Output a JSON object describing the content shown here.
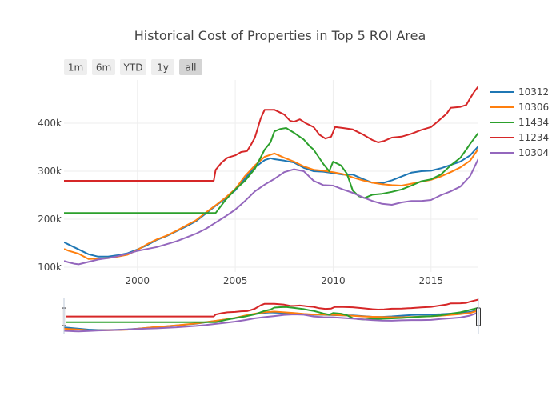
{
  "chart_data": {
    "type": "line",
    "title": "Historical Cost of Properties in Top 5 ROI Area",
    "xlabel": "",
    "ylabel": "",
    "xlim": [
      1996.25,
      2017.42
    ],
    "ylim": [
      90000,
      490000
    ],
    "x_ticks": [
      2000,
      2005,
      2010,
      2015
    ],
    "x_tick_labels": [
      "2000",
      "2005",
      "2010",
      "2015"
    ],
    "y_ticks": [
      100000,
      200000,
      300000,
      400000
    ],
    "y_tick_labels": [
      "100k",
      "200k",
      "300k",
      "400k"
    ],
    "grid": true,
    "legend_position": "right",
    "range_selector": [
      "1m",
      "6m",
      "YTD",
      "1y",
      "all"
    ],
    "range_selector_active": "all",
    "range_slider": true,
    "series": [
      {
        "name": "10312",
        "color": "#1f77b4",
        "points": [
          [
            1996.25,
            152000
          ],
          [
            1996.5,
            147000
          ],
          [
            1997,
            137000
          ],
          [
            1997.5,
            127000
          ],
          [
            1998,
            122000
          ],
          [
            1998.5,
            122000
          ],
          [
            1999,
            125000
          ],
          [
            1999.5,
            129000
          ],
          [
            2000,
            137000
          ],
          [
            2000.5,
            146000
          ],
          [
            2001,
            157000
          ],
          [
            2001.5,
            165000
          ],
          [
            2002,
            175000
          ],
          [
            2002.5,
            185000
          ],
          [
            2003,
            196000
          ],
          [
            2003.5,
            212000
          ],
          [
            2004,
            228000
          ],
          [
            2004.5,
            243000
          ],
          [
            2005,
            260000
          ],
          [
            2005.5,
            285000
          ],
          [
            2006,
            308000
          ],
          [
            2006.5,
            323000
          ],
          [
            2006.8,
            327000
          ],
          [
            2007,
            325000
          ],
          [
            2007.5,
            322000
          ],
          [
            2008,
            318000
          ],
          [
            2008.5,
            307000
          ],
          [
            2009,
            300000
          ],
          [
            2009.5,
            299000
          ],
          [
            2010,
            296000
          ],
          [
            2010.5,
            293000
          ],
          [
            2011,
            293000
          ],
          [
            2011.5,
            284000
          ],
          [
            2012,
            276000
          ],
          [
            2012.5,
            275000
          ],
          [
            2013,
            281000
          ],
          [
            2013.5,
            289000
          ],
          [
            2014,
            297000
          ],
          [
            2014.5,
            300000
          ],
          [
            2015,
            301000
          ],
          [
            2015.5,
            306000
          ],
          [
            2016,
            313000
          ],
          [
            2016.5,
            320000
          ],
          [
            2017,
            333000
          ],
          [
            2017.42,
            352000
          ]
        ]
      },
      {
        "name": "10306",
        "color": "#ff7f0e",
        "points": [
          [
            1996.25,
            138000
          ],
          [
            1996.5,
            134000
          ],
          [
            1997,
            128000
          ],
          [
            1997.5,
            117000
          ],
          [
            1998,
            118000
          ],
          [
            1998.5,
            119000
          ],
          [
            1999,
            122000
          ],
          [
            1999.5,
            126000
          ],
          [
            2000,
            136000
          ],
          [
            2000.5,
            148000
          ],
          [
            2001,
            158000
          ],
          [
            2001.5,
            166000
          ],
          [
            2002,
            176000
          ],
          [
            2002.5,
            187000
          ],
          [
            2003,
            198000
          ],
          [
            2003.5,
            214000
          ],
          [
            2004,
            229000
          ],
          [
            2004.5,
            245000
          ],
          [
            2005,
            263000
          ],
          [
            2005.5,
            290000
          ],
          [
            2006,
            312000
          ],
          [
            2006.5,
            330000
          ],
          [
            2007,
            337000
          ],
          [
            2007.5,
            328000
          ],
          [
            2008,
            320000
          ],
          [
            2008.5,
            310000
          ],
          [
            2009,
            303000
          ],
          [
            2009.5,
            301000
          ],
          [
            2010,
            298000
          ],
          [
            2010.5,
            294000
          ],
          [
            2011,
            287000
          ],
          [
            2011.5,
            281000
          ],
          [
            2012,
            276000
          ],
          [
            2012.5,
            273000
          ],
          [
            2013,
            271000
          ],
          [
            2013.5,
            270000
          ],
          [
            2014,
            274000
          ],
          [
            2014.5,
            278000
          ],
          [
            2015,
            282000
          ],
          [
            2015.5,
            289000
          ],
          [
            2016,
            298000
          ],
          [
            2016.5,
            308000
          ],
          [
            2017,
            322000
          ],
          [
            2017.42,
            347000
          ]
        ]
      },
      {
        "name": "11434",
        "color": "#2ca02c",
        "points": [
          [
            1996.25,
            213000
          ],
          [
            2004,
            213000
          ],
          [
            2004.5,
            240000
          ],
          [
            2005,
            262000
          ],
          [
            2005.5,
            280000
          ],
          [
            2006,
            305000
          ],
          [
            2006.5,
            345000
          ],
          [
            2006.8,
            360000
          ],
          [
            2007,
            383000
          ],
          [
            2007.3,
            388000
          ],
          [
            2007.6,
            390000
          ],
          [
            2008,
            380000
          ],
          [
            2008.5,
            366000
          ],
          [
            2008.8,
            352000
          ],
          [
            2009,
            345000
          ],
          [
            2009.5,
            315000
          ],
          [
            2009.8,
            300000
          ],
          [
            2010,
            320000
          ],
          [
            2010.4,
            312000
          ],
          [
            2010.7,
            295000
          ],
          [
            2011,
            260000
          ],
          [
            2011.3,
            248000
          ],
          [
            2011.6,
            244000
          ],
          [
            2012,
            251000
          ],
          [
            2012.5,
            253000
          ],
          [
            2013,
            257000
          ],
          [
            2013.5,
            262000
          ],
          [
            2014,
            270000
          ],
          [
            2014.5,
            279000
          ],
          [
            2015,
            283000
          ],
          [
            2015.5,
            293000
          ],
          [
            2016,
            312000
          ],
          [
            2016.5,
            328000
          ],
          [
            2016.8,
            345000
          ],
          [
            2017,
            357000
          ],
          [
            2017.42,
            380000
          ]
        ]
      },
      {
        "name": "11234",
        "color": "#d62728",
        "points": [
          [
            1996.25,
            280000
          ],
          [
            2003.9,
            280000
          ],
          [
            2004,
            303000
          ],
          [
            2004.3,
            318000
          ],
          [
            2004.6,
            328000
          ],
          [
            2005,
            333000
          ],
          [
            2005.3,
            340000
          ],
          [
            2005.6,
            342000
          ],
          [
            2005.8,
            355000
          ],
          [
            2006,
            370000
          ],
          [
            2006.3,
            410000
          ],
          [
            2006.5,
            428000
          ],
          [
            2007,
            428000
          ],
          [
            2007.5,
            418000
          ],
          [
            2007.8,
            405000
          ],
          [
            2008,
            403000
          ],
          [
            2008.3,
            408000
          ],
          [
            2008.6,
            400000
          ],
          [
            2009,
            392000
          ],
          [
            2009.3,
            376000
          ],
          [
            2009.6,
            368000
          ],
          [
            2009.9,
            372000
          ],
          [
            2010.1,
            392000
          ],
          [
            2010.5,
            390000
          ],
          [
            2011,
            387000
          ],
          [
            2011.5,
            377000
          ],
          [
            2012,
            365000
          ],
          [
            2012.3,
            360000
          ],
          [
            2012.6,
            363000
          ],
          [
            2013,
            370000
          ],
          [
            2013.5,
            372000
          ],
          [
            2014,
            378000
          ],
          [
            2014.5,
            386000
          ],
          [
            2015,
            392000
          ],
          [
            2015.3,
            402000
          ],
          [
            2015.8,
            420000
          ],
          [
            2016,
            432000
          ],
          [
            2016.5,
            434000
          ],
          [
            2016.8,
            438000
          ],
          [
            2017,
            452000
          ],
          [
            2017.2,
            465000
          ],
          [
            2017.42,
            477000
          ]
        ]
      },
      {
        "name": "10304",
        "color": "#9467bd",
        "points": [
          [
            1996.25,
            113000
          ],
          [
            1996.5,
            110000
          ],
          [
            1996.8,
            107000
          ],
          [
            1997,
            106000
          ],
          [
            1997.5,
            111000
          ],
          [
            1998,
            116000
          ],
          [
            1998.5,
            119000
          ],
          [
            1999,
            123000
          ],
          [
            1999.5,
            128000
          ],
          [
            2000,
            134000
          ],
          [
            2000.5,
            138000
          ],
          [
            2001,
            142000
          ],
          [
            2001.5,
            148000
          ],
          [
            2002,
            154000
          ],
          [
            2002.5,
            162000
          ],
          [
            2003,
            170000
          ],
          [
            2003.5,
            180000
          ],
          [
            2004,
            193000
          ],
          [
            2004.5,
            206000
          ],
          [
            2005,
            220000
          ],
          [
            2005.5,
            238000
          ],
          [
            2006,
            258000
          ],
          [
            2006.5,
            272000
          ],
          [
            2007,
            284000
          ],
          [
            2007.5,
            298000
          ],
          [
            2008,
            304000
          ],
          [
            2008.5,
            300000
          ],
          [
            2009,
            280000
          ],
          [
            2009.5,
            271000
          ],
          [
            2010,
            270000
          ],
          [
            2010.5,
            262000
          ],
          [
            2011,
            255000
          ],
          [
            2011.5,
            246000
          ],
          [
            2012,
            238000
          ],
          [
            2012.5,
            232000
          ],
          [
            2013,
            230000
          ],
          [
            2013.5,
            235000
          ],
          [
            2014,
            238000
          ],
          [
            2014.5,
            238000
          ],
          [
            2015,
            240000
          ],
          [
            2015.5,
            250000
          ],
          [
            2016,
            258000
          ],
          [
            2016.5,
            268000
          ],
          [
            2017,
            290000
          ],
          [
            2017.42,
            326000
          ]
        ]
      }
    ]
  }
}
